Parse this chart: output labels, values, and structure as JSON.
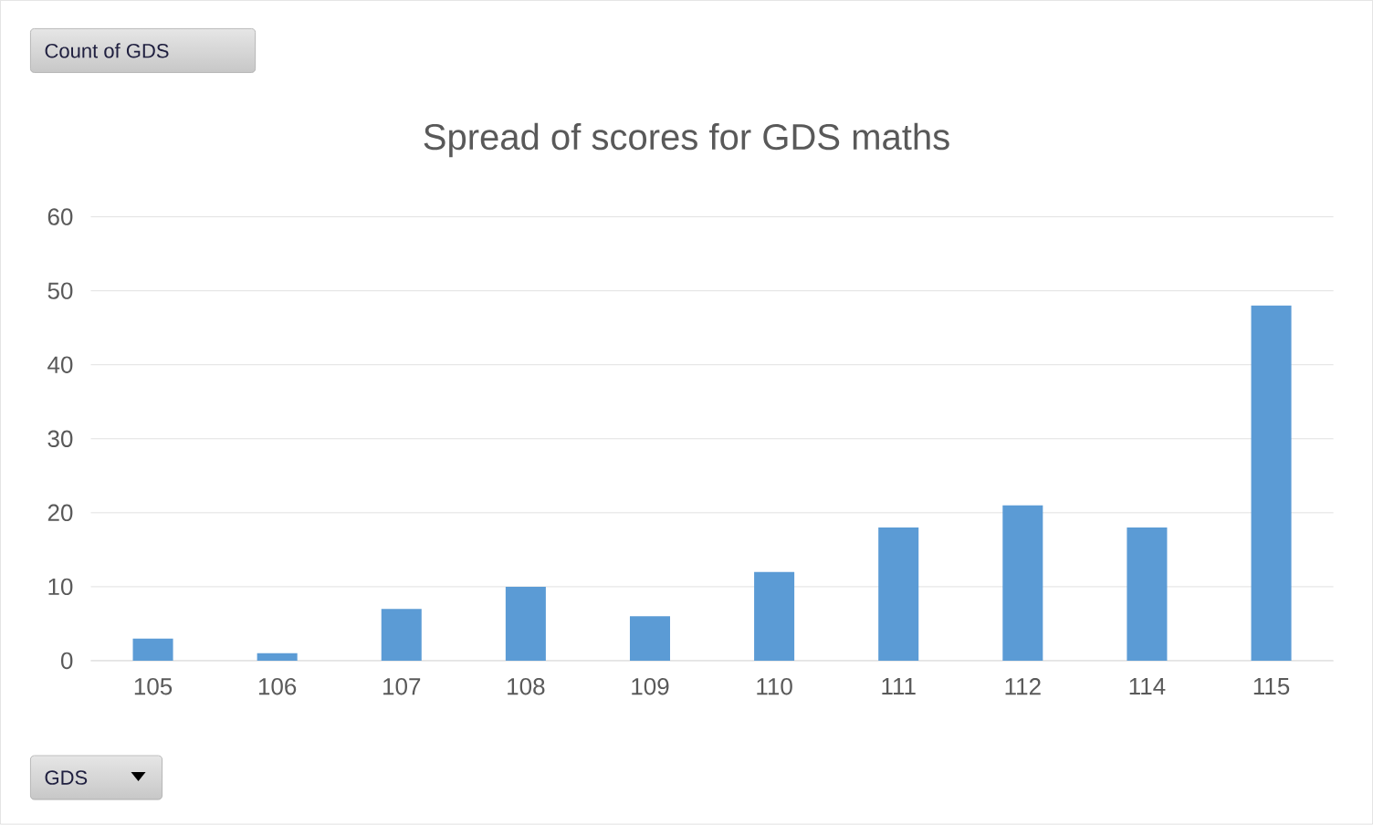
{
  "chart_data": {
    "type": "bar",
    "title": "Spread of scores for GDS maths",
    "categories": [
      "105",
      "106",
      "107",
      "108",
      "109",
      "110",
      "111",
      "112",
      "114",
      "115"
    ],
    "values": [
      3,
      1,
      7,
      10,
      6,
      12,
      18,
      21,
      18,
      48
    ],
    "color": "#5b9bd5",
    "ylim": [
      0,
      60
    ],
    "yticks": [
      0,
      10,
      20,
      30,
      40,
      50,
      60
    ],
    "grid": "y",
    "annotations": [
      "Count of GDS",
      "GDS"
    ]
  }
}
